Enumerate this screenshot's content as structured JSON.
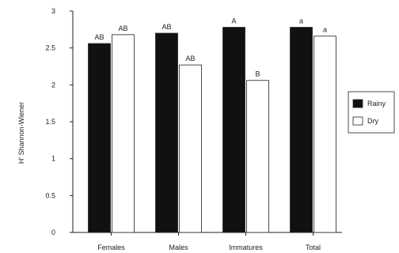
{
  "chart_data": {
    "type": "bar",
    "title": "",
    "xlabel": "",
    "ylabel": "H' Shannon-Wiener",
    "ylim": [
      0,
      3
    ],
    "yticks": [
      "0",
      "0.5",
      "1",
      "1.5",
      "2",
      "2.5",
      "3"
    ],
    "categories": [
      "Females",
      "Males",
      "Immatures",
      "Total"
    ],
    "series": [
      {
        "name": "Rainy",
        "color": "#111111",
        "values": [
          2.56,
          2.7,
          2.78,
          2.78
        ],
        "labels": [
          "AB",
          "AB",
          "A",
          "a"
        ]
      },
      {
        "name": "Dry",
        "color": "#ffffff",
        "values": [
          2.68,
          2.27,
          2.06,
          2.66
        ],
        "labels": [
          "AB",
          "AB",
          "B",
          "a"
        ]
      }
    ],
    "legend_position": "right",
    "grid": false
  }
}
